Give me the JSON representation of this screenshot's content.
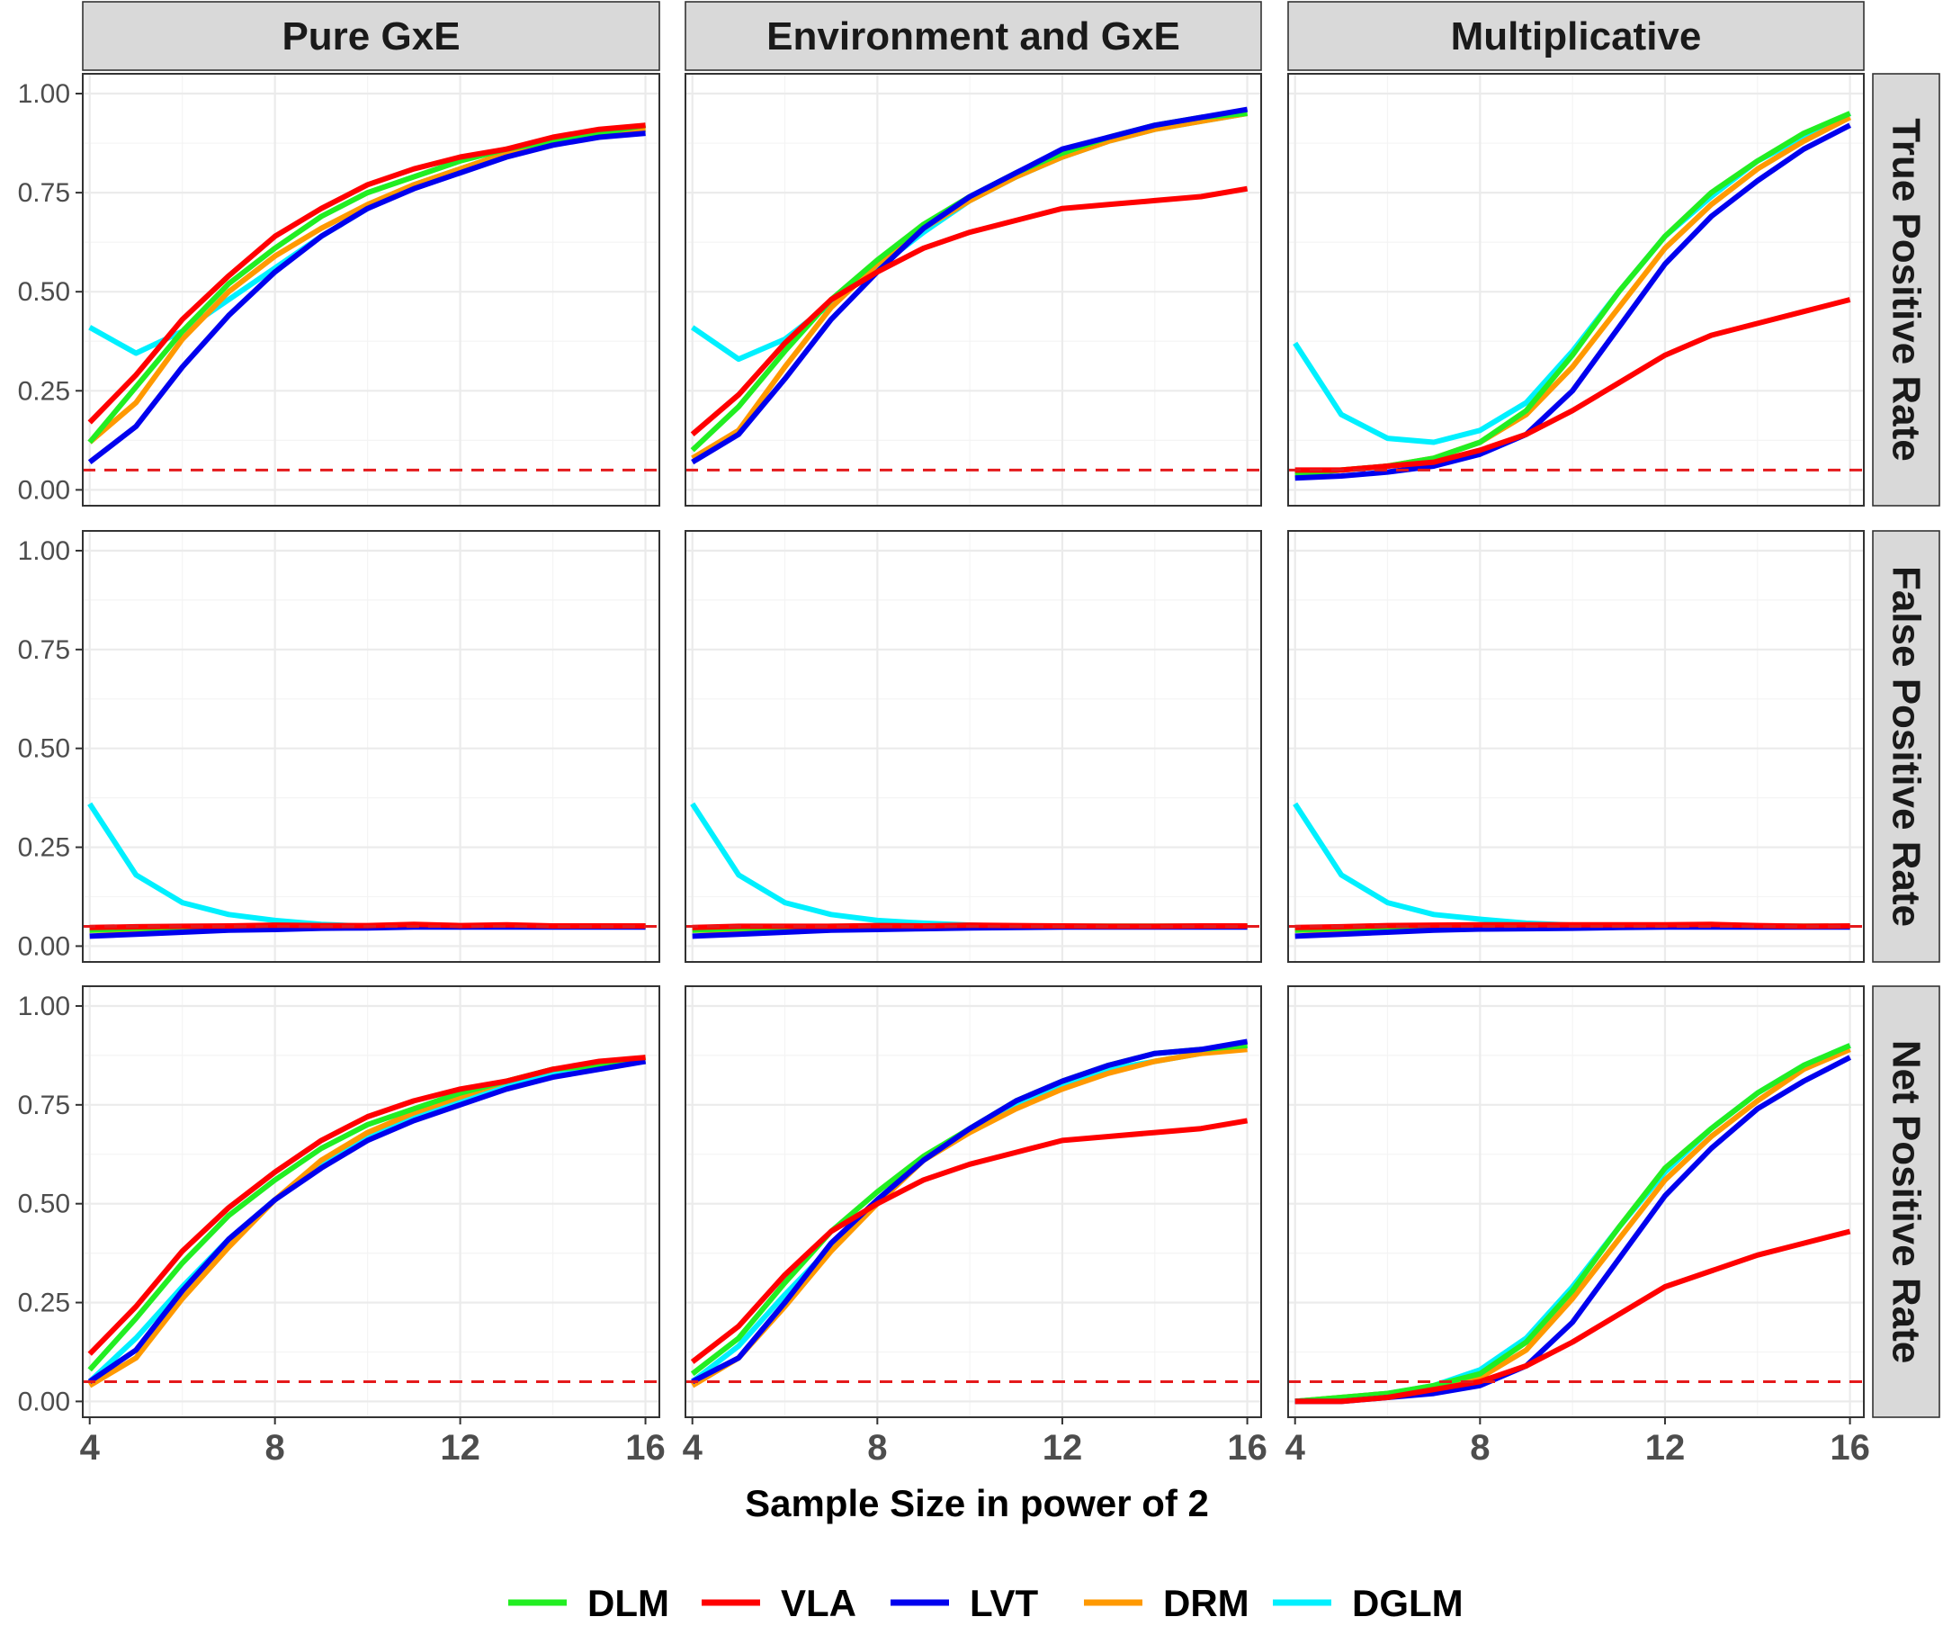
{
  "chart_data": {
    "type": "line",
    "facet_columns": [
      "Pure GxE",
      "Environment and GxE",
      "Multiplicative"
    ],
    "facet_rows": [
      "True Positive Rate",
      "False Positive Rate",
      "Net Positive Rate"
    ],
    "xlabel": "Sample Size in power of 2",
    "x": [
      4,
      5,
      6,
      7,
      8,
      9,
      10,
      11,
      12,
      13,
      14,
      15,
      16
    ],
    "xticks": [
      "4",
      "8",
      "12",
      "16"
    ],
    "xlim": [
      3.85,
      16.3
    ],
    "ylim": [
      -0.04,
      1.05
    ],
    "yticks": [
      "0.00",
      "0.25",
      "0.50",
      "0.75",
      "1.00"
    ],
    "reference_line": {
      "y": 0.05,
      "style": "dashed",
      "color": "#e41a1c"
    },
    "legend": {
      "position": "bottom"
    },
    "series_styles": [
      {
        "name": "DLM",
        "color": "#22ee22"
      },
      {
        "name": "VLA",
        "color": "#ff0000"
      },
      {
        "name": "LVT",
        "color": "#0000ee"
      },
      {
        "name": "DRM",
        "color": "#ff9900"
      },
      {
        "name": "DGLM",
        "color": "#00f0ff"
      }
    ],
    "panels": [
      {
        "row": "True Positive Rate",
        "col": "Pure GxE",
        "series": [
          {
            "name": "DGLM",
            "values": [
              0.41,
              0.345,
              0.4,
              0.48,
              0.56,
              0.64,
              0.71,
              0.77,
              0.81,
              0.85,
              0.88,
              0.9,
              0.91
            ]
          },
          {
            "name": "DRM",
            "values": [
              0.12,
              0.22,
              0.38,
              0.5,
              0.59,
              0.66,
              0.72,
              0.77,
              0.81,
              0.85,
              0.88,
              0.9,
              0.91
            ]
          },
          {
            "name": "DLM",
            "values": [
              0.12,
              0.26,
              0.4,
              0.52,
              0.61,
              0.69,
              0.75,
              0.79,
              0.83,
              0.86,
              0.88,
              0.9,
              0.92
            ]
          },
          {
            "name": "LVT",
            "values": [
              0.07,
              0.16,
              0.31,
              0.44,
              0.55,
              0.64,
              0.71,
              0.76,
              0.8,
              0.84,
              0.87,
              0.89,
              0.9
            ]
          },
          {
            "name": "VLA",
            "values": [
              0.17,
              0.29,
              0.43,
              0.54,
              0.64,
              0.71,
              0.77,
              0.81,
              0.84,
              0.86,
              0.89,
              0.91,
              0.92
            ]
          }
        ]
      },
      {
        "row": "True Positive Rate",
        "col": "Environment and GxE",
        "series": [
          {
            "name": "DGLM",
            "values": [
              0.41,
              0.33,
              0.38,
              0.47,
              0.56,
              0.65,
              0.73,
              0.79,
              0.84,
              0.88,
              0.91,
              0.93,
              0.95
            ]
          },
          {
            "name": "DRM",
            "values": [
              0.08,
              0.15,
              0.31,
              0.46,
              0.57,
              0.66,
              0.73,
              0.79,
              0.84,
              0.88,
              0.91,
              0.93,
              0.95
            ]
          },
          {
            "name": "DLM",
            "values": [
              0.1,
              0.21,
              0.35,
              0.48,
              0.58,
              0.67,
              0.74,
              0.8,
              0.85,
              0.89,
              0.92,
              0.94,
              0.95
            ]
          },
          {
            "name": "LVT",
            "values": [
              0.07,
              0.14,
              0.28,
              0.43,
              0.55,
              0.66,
              0.74,
              0.8,
              0.86,
              0.89,
              0.92,
              0.94,
              0.96
            ]
          },
          {
            "name": "VLA",
            "values": [
              0.14,
              0.24,
              0.37,
              0.48,
              0.55,
              0.61,
              0.65,
              0.68,
              0.71,
              0.72,
              0.73,
              0.74,
              0.76
            ]
          }
        ]
      },
      {
        "row": "True Positive Rate",
        "col": "Multiplicative",
        "series": [
          {
            "name": "DGLM",
            "values": [
              0.37,
              0.19,
              0.13,
              0.12,
              0.15,
              0.22,
              0.35,
              0.5,
              0.64,
              0.74,
              0.83,
              0.89,
              0.95
            ]
          },
          {
            "name": "DRM",
            "values": [
              0.04,
              0.05,
              0.06,
              0.08,
              0.12,
              0.19,
              0.31,
              0.46,
              0.61,
              0.72,
              0.81,
              0.88,
              0.94
            ]
          },
          {
            "name": "DLM",
            "values": [
              0.04,
              0.05,
              0.06,
              0.08,
              0.12,
              0.2,
              0.34,
              0.5,
              0.64,
              0.75,
              0.83,
              0.9,
              0.95
            ]
          },
          {
            "name": "LVT",
            "values": [
              0.03,
              0.035,
              0.045,
              0.06,
              0.09,
              0.14,
              0.25,
              0.41,
              0.57,
              0.69,
              0.78,
              0.86,
              0.92
            ]
          },
          {
            "name": "VLA",
            "values": [
              0.05,
              0.05,
              0.06,
              0.07,
              0.1,
              0.14,
              0.2,
              0.27,
              0.34,
              0.39,
              0.42,
              0.45,
              0.48
            ]
          }
        ]
      },
      {
        "row": "False Positive Rate",
        "col": "Pure GxE",
        "series": [
          {
            "name": "DGLM",
            "values": [
              0.36,
              0.18,
              0.11,
              0.08,
              0.065,
              0.055,
              0.05,
              0.05,
              0.05,
              0.05,
              0.05,
              0.05,
              0.05
            ]
          },
          {
            "name": "DRM",
            "values": [
              0.04,
              0.04,
              0.045,
              0.045,
              0.05,
              0.05,
              0.05,
              0.05,
              0.05,
              0.05,
              0.05,
              0.05,
              0.05
            ]
          },
          {
            "name": "DLM",
            "values": [
              0.04,
              0.045,
              0.045,
              0.05,
              0.05,
              0.05,
              0.05,
              0.05,
              0.05,
              0.05,
              0.05,
              0.05,
              0.05
            ]
          },
          {
            "name": "LVT",
            "values": [
              0.025,
              0.03,
              0.035,
              0.04,
              0.042,
              0.045,
              0.046,
              0.048,
              0.048,
              0.048,
              0.048,
              0.048,
              0.048
            ]
          },
          {
            "name": "VLA",
            "values": [
              0.047,
              0.049,
              0.05,
              0.051,
              0.053,
              0.052,
              0.052,
              0.055,
              0.052,
              0.054,
              0.051,
              0.051,
              0.051
            ]
          }
        ]
      },
      {
        "row": "False Positive Rate",
        "col": "Environment and GxE",
        "series": [
          {
            "name": "DGLM",
            "values": [
              0.36,
              0.18,
              0.11,
              0.08,
              0.065,
              0.058,
              0.053,
              0.05,
              0.05,
              0.05,
              0.05,
              0.05,
              0.05
            ]
          },
          {
            "name": "DRM",
            "values": [
              0.04,
              0.04,
              0.045,
              0.045,
              0.05,
              0.05,
              0.05,
              0.05,
              0.05,
              0.05,
              0.05,
              0.05,
              0.05
            ]
          },
          {
            "name": "DLM",
            "values": [
              0.04,
              0.045,
              0.045,
              0.05,
              0.05,
              0.05,
              0.05,
              0.05,
              0.05,
              0.05,
              0.05,
              0.05,
              0.05
            ]
          },
          {
            "name": "LVT",
            "values": [
              0.025,
              0.03,
              0.035,
              0.04,
              0.042,
              0.044,
              0.046,
              0.047,
              0.048,
              0.048,
              0.048,
              0.048,
              0.048
            ]
          },
          {
            "name": "VLA",
            "values": [
              0.047,
              0.05,
              0.05,
              0.05,
              0.052,
              0.051,
              0.053,
              0.052,
              0.051,
              0.05,
              0.05,
              0.051,
              0.051
            ]
          }
        ]
      },
      {
        "row": "False Positive Rate",
        "col": "Multiplicative",
        "series": [
          {
            "name": "DGLM",
            "values": [
              0.36,
              0.18,
              0.11,
              0.08,
              0.068,
              0.058,
              0.053,
              0.05,
              0.05,
              0.05,
              0.05,
              0.05,
              0.05
            ]
          },
          {
            "name": "DRM",
            "values": [
              0.04,
              0.04,
              0.045,
              0.045,
              0.05,
              0.05,
              0.05,
              0.05,
              0.05,
              0.05,
              0.05,
              0.05,
              0.05
            ]
          },
          {
            "name": "DLM",
            "values": [
              0.04,
              0.045,
              0.045,
              0.05,
              0.05,
              0.05,
              0.05,
              0.05,
              0.05,
              0.05,
              0.05,
              0.05,
              0.05
            ]
          },
          {
            "name": "LVT",
            "values": [
              0.025,
              0.03,
              0.035,
              0.04,
              0.043,
              0.044,
              0.045,
              0.047,
              0.048,
              0.048,
              0.048,
              0.048,
              0.048
            ]
          },
          {
            "name": "VLA",
            "values": [
              0.047,
              0.049,
              0.052,
              0.053,
              0.054,
              0.054,
              0.054,
              0.054,
              0.054,
              0.055,
              0.052,
              0.05,
              0.051
            ]
          }
        ]
      },
      {
        "row": "Net Positive Rate",
        "col": "Pure GxE",
        "series": [
          {
            "name": "DGLM",
            "values": [
              0.05,
              0.16,
              0.29,
              0.41,
              0.51,
              0.6,
              0.67,
              0.72,
              0.76,
              0.8,
              0.83,
              0.85,
              0.86
            ]
          },
          {
            "name": "DRM",
            "values": [
              0.04,
              0.11,
              0.26,
              0.39,
              0.51,
              0.61,
              0.68,
              0.73,
              0.77,
              0.81,
              0.84,
              0.85,
              0.86
            ]
          },
          {
            "name": "DLM",
            "values": [
              0.08,
              0.21,
              0.35,
              0.47,
              0.56,
              0.64,
              0.7,
              0.74,
              0.78,
              0.81,
              0.84,
              0.85,
              0.87
            ]
          },
          {
            "name": "LVT",
            "values": [
              0.05,
              0.13,
              0.28,
              0.41,
              0.51,
              0.59,
              0.66,
              0.71,
              0.75,
              0.79,
              0.82,
              0.84,
              0.86
            ]
          },
          {
            "name": "VLA",
            "values": [
              0.12,
              0.24,
              0.38,
              0.49,
              0.58,
              0.66,
              0.72,
              0.76,
              0.79,
              0.81,
              0.84,
              0.86,
              0.87
            ]
          }
        ]
      },
      {
        "row": "Net Positive Rate",
        "col": "Environment and GxE",
        "series": [
          {
            "name": "DGLM",
            "values": [
              0.05,
              0.14,
              0.27,
              0.39,
              0.51,
              0.61,
              0.69,
              0.75,
              0.8,
              0.84,
              0.86,
              0.88,
              0.9
            ]
          },
          {
            "name": "DRM",
            "values": [
              0.04,
              0.11,
              0.24,
              0.38,
              0.5,
              0.61,
              0.68,
              0.74,
              0.79,
              0.83,
              0.86,
              0.88,
              0.89
            ]
          },
          {
            "name": "DLM",
            "values": [
              0.07,
              0.16,
              0.3,
              0.43,
              0.53,
              0.62,
              0.69,
              0.76,
              0.81,
              0.85,
              0.88,
              0.89,
              0.9
            ]
          },
          {
            "name": "LVT",
            "values": [
              0.05,
              0.11,
              0.25,
              0.4,
              0.51,
              0.61,
              0.69,
              0.76,
              0.81,
              0.85,
              0.88,
              0.89,
              0.91
            ]
          },
          {
            "name": "VLA",
            "values": [
              0.1,
              0.19,
              0.32,
              0.43,
              0.5,
              0.56,
              0.6,
              0.63,
              0.66,
              0.67,
              0.68,
              0.69,
              0.71
            ]
          }
        ]
      },
      {
        "row": "Net Positive Rate",
        "col": "Multiplicative",
        "series": [
          {
            "name": "DGLM",
            "values": [
              0.0,
              0.01,
              0.02,
              0.04,
              0.08,
              0.16,
              0.29,
              0.44,
              0.58,
              0.69,
              0.78,
              0.85,
              0.9
            ]
          },
          {
            "name": "DRM",
            "values": [
              0.0,
              0.01,
              0.02,
              0.03,
              0.06,
              0.13,
              0.26,
              0.41,
              0.56,
              0.67,
              0.76,
              0.84,
              0.89
            ]
          },
          {
            "name": "DLM",
            "values": [
              0.0,
              0.01,
              0.02,
              0.04,
              0.07,
              0.15,
              0.28,
              0.44,
              0.59,
              0.69,
              0.78,
              0.85,
              0.9
            ]
          },
          {
            "name": "LVT",
            "values": [
              0.0,
              0.0,
              0.01,
              0.02,
              0.04,
              0.09,
              0.2,
              0.36,
              0.52,
              0.64,
              0.74,
              0.81,
              0.87
            ]
          },
          {
            "name": "VLA",
            "values": [
              0.0,
              0.0,
              0.01,
              0.03,
              0.05,
              0.09,
              0.15,
              0.22,
              0.29,
              0.33,
              0.37,
              0.4,
              0.43
            ]
          }
        ]
      }
    ]
  }
}
